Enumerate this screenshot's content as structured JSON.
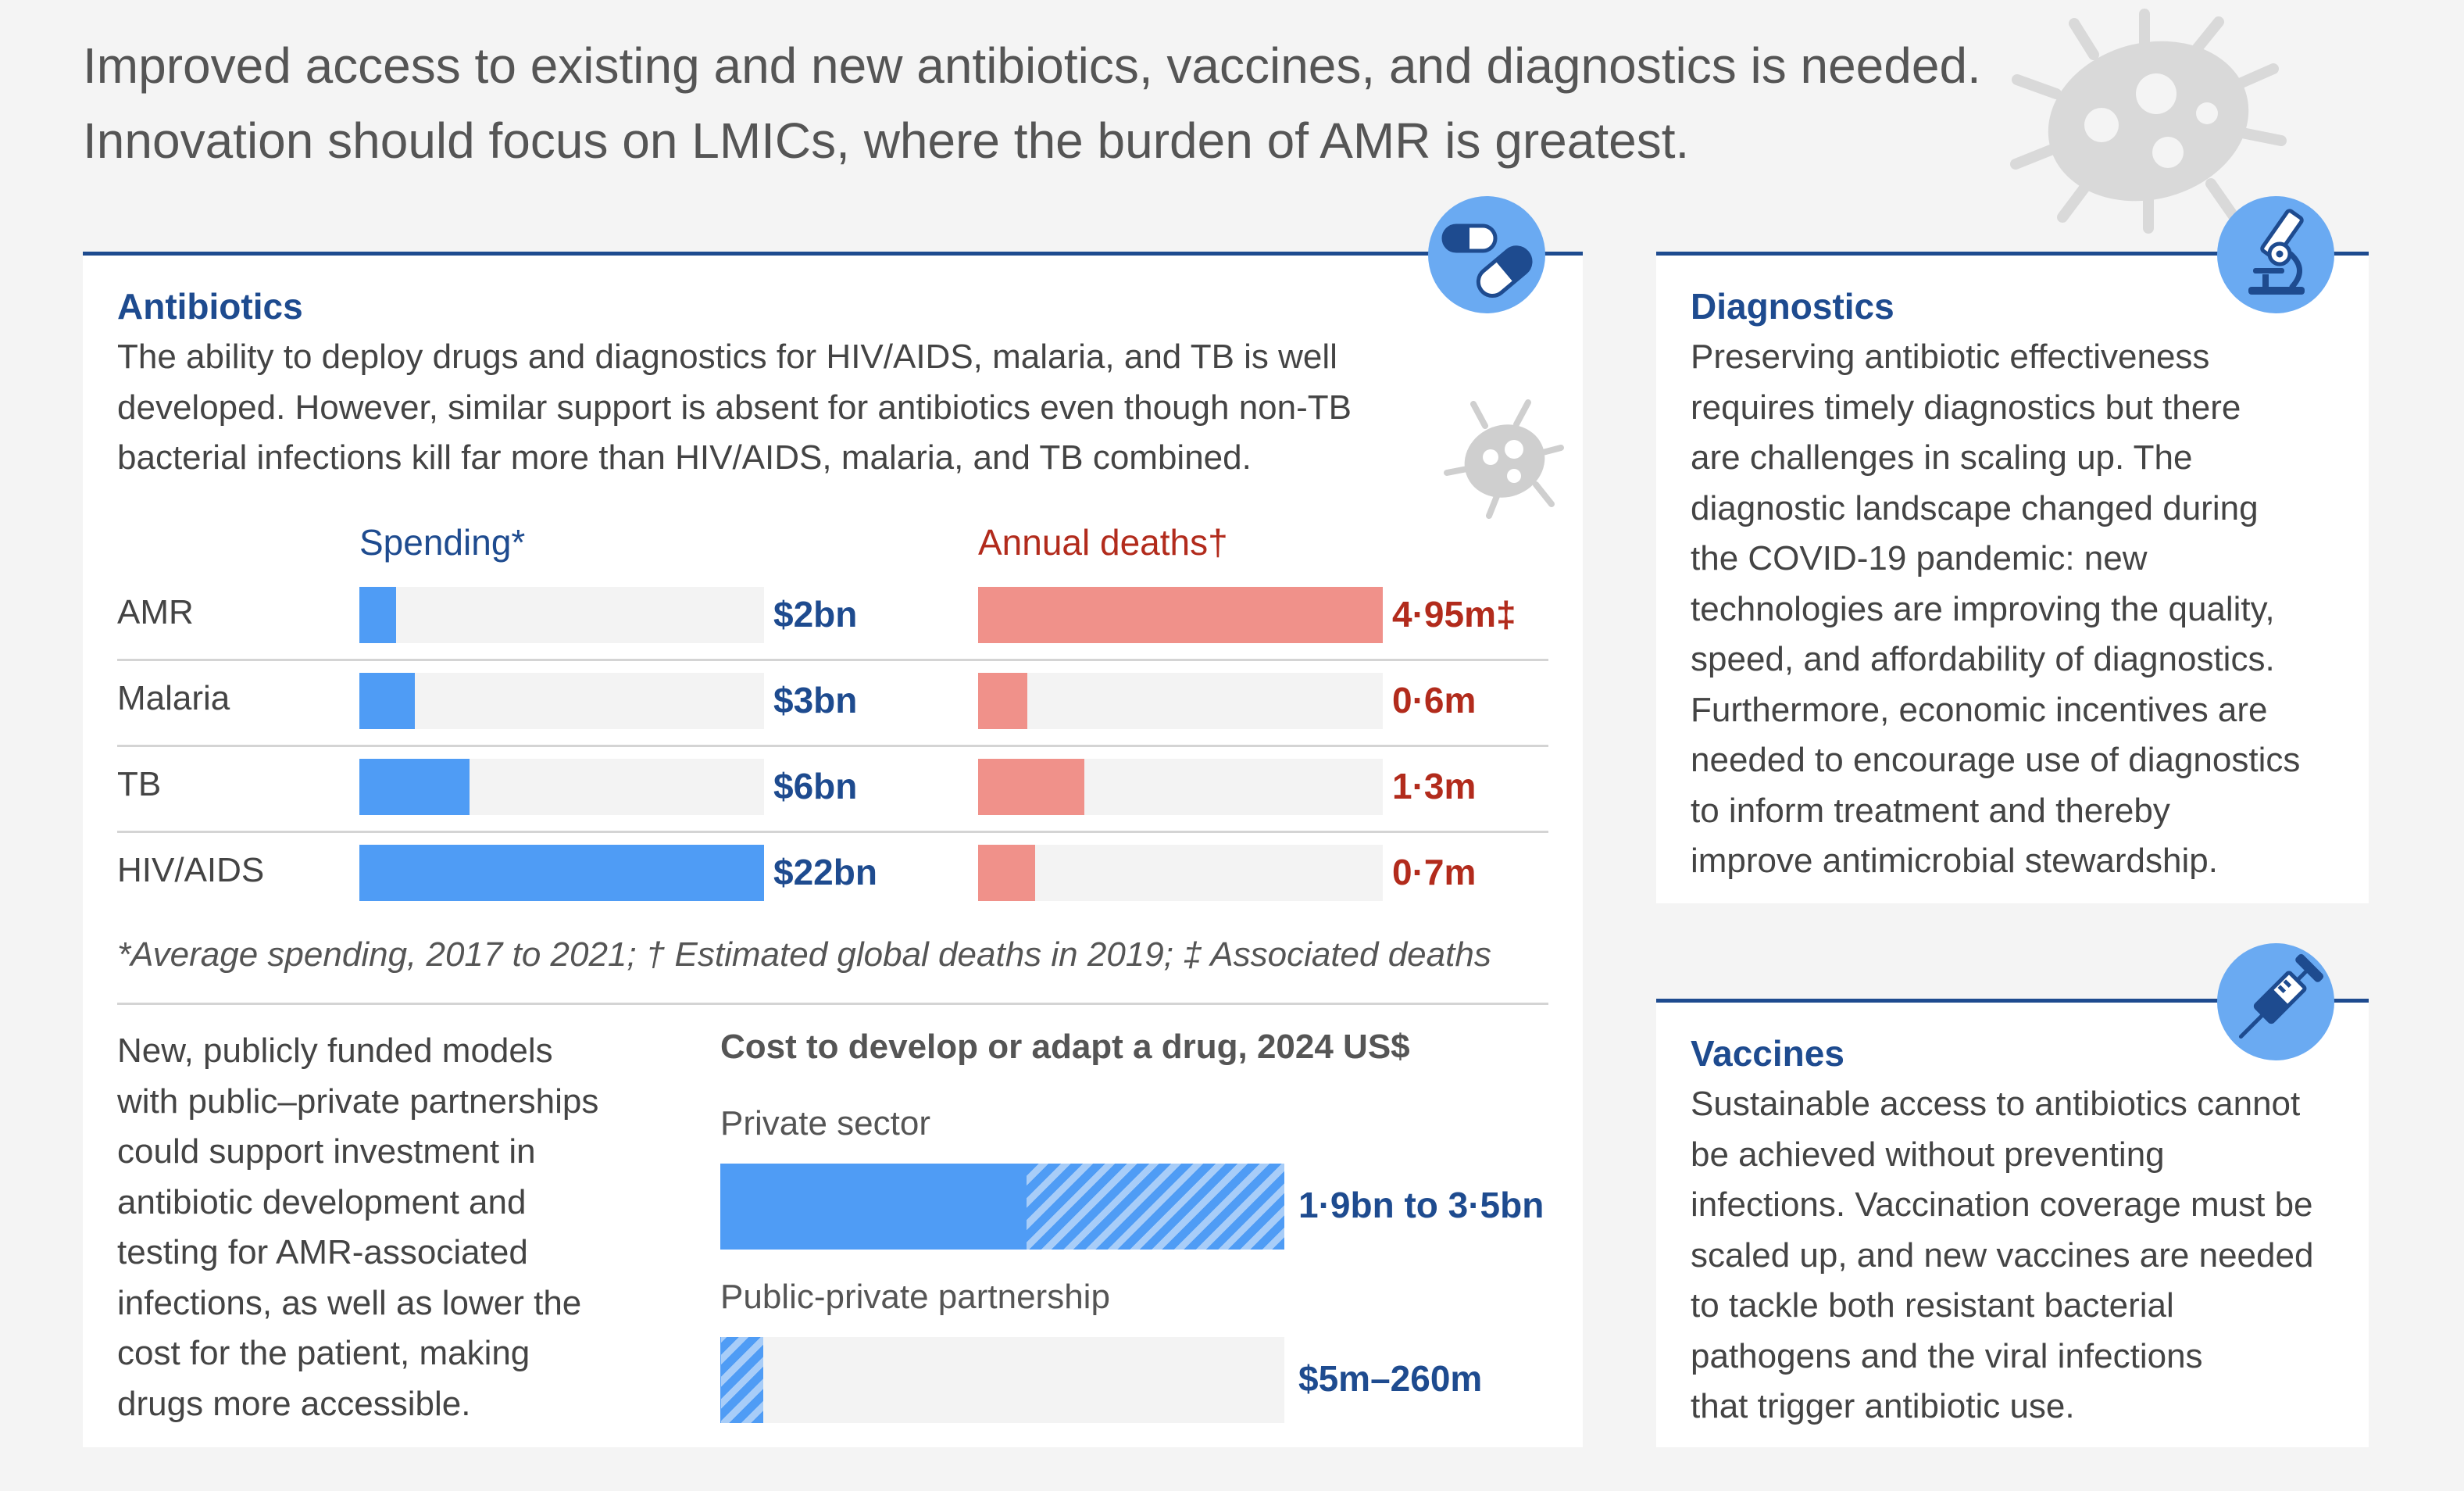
{
  "headline": {
    "line1": "Improved access to existing and new antibiotics, vaccines, and diagnostics is needed.",
    "line2": "Innovation should focus on LMICs, where the burden of AMR is greatest."
  },
  "antibiotics": {
    "title": "Antibiotics",
    "intro": [
      "The ability to deploy drugs and diagnostics for HIV/AIDS, malaria, and TB is well",
      "developed. However, similar support is absent for antibiotics even though non-TB",
      "bacterial infections kill far more than HIV/AIDS, malaria, and TB combined."
    ],
    "footnote": "*Average spending, 2017 to 2021; † Estimated global deaths in 2019; ‡ Associated deaths",
    "models_text": [
      "New, publicly funded models",
      "with public–private partnerships",
      "could support investment in",
      "antibiotic development and",
      "testing for AMR-associated",
      "infections, as well as lower the",
      "cost for the patient, making",
      "drugs more accessible."
    ]
  },
  "chart_data": [
    {
      "type": "bar",
      "orientation": "horizontal",
      "categories": [
        "AMR",
        "Malaria",
        "TB",
        "HIV/AIDS"
      ],
      "series": [
        {
          "name": "Spending*",
          "values": [
            2,
            3,
            6,
            22
          ],
          "labels": [
            "$2bn",
            "$3bn",
            "$6bn",
            "$22bn"
          ],
          "unit": "US$ bn",
          "color": "#4f9cf5",
          "label_color": "#1e4b8f",
          "xlim": [
            0,
            22
          ]
        },
        {
          "name": "Annual deaths†",
          "values": [
            4.95,
            0.6,
            1.3,
            0.7
          ],
          "labels": [
            "4·95m‡",
            "0·6m",
            "1·3m",
            "0·7m"
          ],
          "unit": "million",
          "color": "#f0918a",
          "label_color": "#b22b1c",
          "xlim": [
            0,
            4.95
          ]
        }
      ]
    },
    {
      "type": "bar",
      "orientation": "horizontal",
      "stacked_range": true,
      "title": "Cost to develop or adapt a drug, 2024 US$",
      "categories": [
        "Private sector",
        "Public-private partnership"
      ],
      "ranges": [
        {
          "low": 1900,
          "high": 3500,
          "label": "1·9bn to 3·5bn"
        },
        {
          "low": 5,
          "high": 260,
          "label": "$5m–260m"
        }
      ],
      "unit": "US$ m",
      "xlim": [
        0,
        3500
      ],
      "color": "#4f9cf5"
    }
  ],
  "diagnostics": {
    "title": "Diagnostics",
    "lines": [
      "Preserving antibiotic effectiveness",
      "requires timely diagnostics but there",
      "are challenges in scaling up.  The",
      "diagnostic landscape changed during",
      "the COVID-19 pandemic: new",
      "technologies are improving the quality,",
      "speed, and affordability of diagnostics.",
      "Furthermore, economic incentives are",
      "needed to encourage use of diagnostics",
      "to inform treatment and thereby",
      "improve antimicrobial stewardship."
    ]
  },
  "vaccines": {
    "title": "Vaccines",
    "lines": [
      "Sustainable access to antibiotics cannot",
      "be achieved without preventing",
      "infections. Vaccination coverage must be",
      "scaled up, and new vaccines are needed",
      "to tackle both resistant bacterial",
      "pathogens and the viral infections",
      "that trigger antibiotic use."
    ]
  },
  "icons": {
    "antibiotics": "pills-icon",
    "diagnostics": "microscope-icon",
    "vaccines": "syringe-icon",
    "decoration": "bacteria-icon"
  },
  "colors": {
    "navy": "#1e4b8f",
    "bar_blue": "#4f9cf5",
    "bar_red": "#f0918a",
    "text_red": "#b22b1c",
    "badge": "#6aaaf2"
  }
}
